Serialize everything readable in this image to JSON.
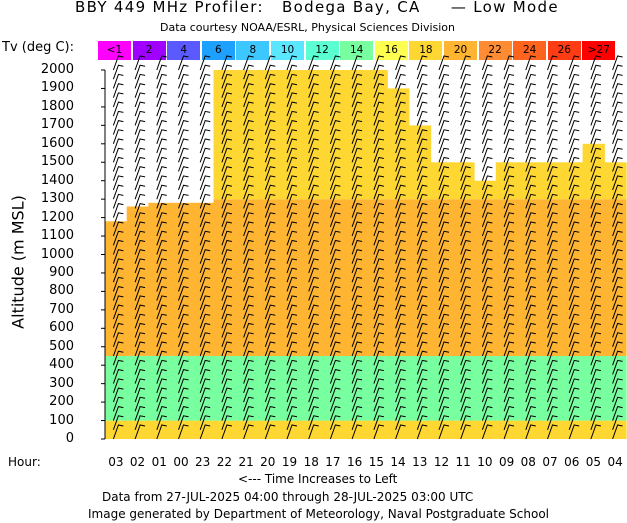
{
  "header": {
    "title": "BBY 449 MHz Profiler:   Bodega Bay, CA     — Low Mode",
    "subtitle": "Data courtesy NOAA/ESRL, Physical Sciences Division"
  },
  "colorbar": {
    "label": "Tv (deg C):",
    "bins": [
      {
        "label": "<1",
        "color": "#ff00ff"
      },
      {
        "label": "2",
        "color": "#a000ff"
      },
      {
        "label": "4",
        "color": "#5a5aff"
      },
      {
        "label": "6",
        "color": "#1ea0ff"
      },
      {
        "label": "8",
        "color": "#3cc8ff"
      },
      {
        "label": "10",
        "color": "#5ae6ff"
      },
      {
        "label": "12",
        "color": "#5affd2"
      },
      {
        "label": "14",
        "color": "#78ffa0"
      },
      {
        "label": "16",
        "color": "#ffff50"
      },
      {
        "label": "18",
        "color": "#ffd732"
      },
      {
        "label": "20",
        "color": "#ffb432"
      },
      {
        "label": "22",
        "color": "#ff8c32"
      },
      {
        "label": "24",
        "color": "#ff641e"
      },
      {
        "label": "26",
        "color": "#ff3c14"
      },
      {
        "label": ">27",
        "color": "#ff0000"
      }
    ]
  },
  "chart_data": {
    "type": "heatmap",
    "title": "BBY 449 MHz Profiler:   Bodega Bay, CA     — Low Mode",
    "ylabel": "Altitude (m MSL)",
    "xlabel": "<--- Time Increases to Left",
    "x_title": "Hour:",
    "ylim": [
      0,
      2000
    ],
    "yticks": [
      0,
      100,
      200,
      300,
      400,
      500,
      600,
      700,
      800,
      900,
      1000,
      1100,
      1200,
      1300,
      1400,
      1500,
      1600,
      1700,
      1800,
      1900,
      2000
    ],
    "hours": [
      "03",
      "02",
      "01",
      "00",
      "23",
      "22",
      "21",
      "20",
      "19",
      "18",
      "17",
      "16",
      "15",
      "14",
      "13",
      "12",
      "11",
      "10",
      "09",
      "08",
      "07",
      "06",
      "05",
      "04"
    ],
    "data_top_m": [
      1180,
      1260,
      1280,
      1280,
      1280,
      2000,
      2000,
      2000,
      2000,
      2000,
      2000,
      2000,
      2000,
      1900,
      1700,
      1500,
      1500,
      1400,
      1500,
      1500,
      1500,
      1500,
      1600,
      1500
    ],
    "temperature_layers_degC": [
      {
        "range_m": [
          0,
          100
        ],
        "tv": 18
      },
      {
        "range_m": [
          100,
          450
        ],
        "tv": 14
      },
      {
        "range_m": [
          450,
          1300
        ],
        "tv": 20
      },
      {
        "range_m": [
          1300,
          2000
        ],
        "tv": 18
      }
    ],
    "grid": false,
    "legend": "colorbar top"
  },
  "footer": {
    "date_range": "Data from 27-JUL-2025 04:00 through 28-JUL-2025 03:00 UTC",
    "credit": "Image generated by Department of Meteorology, Naval Postgraduate School"
  }
}
